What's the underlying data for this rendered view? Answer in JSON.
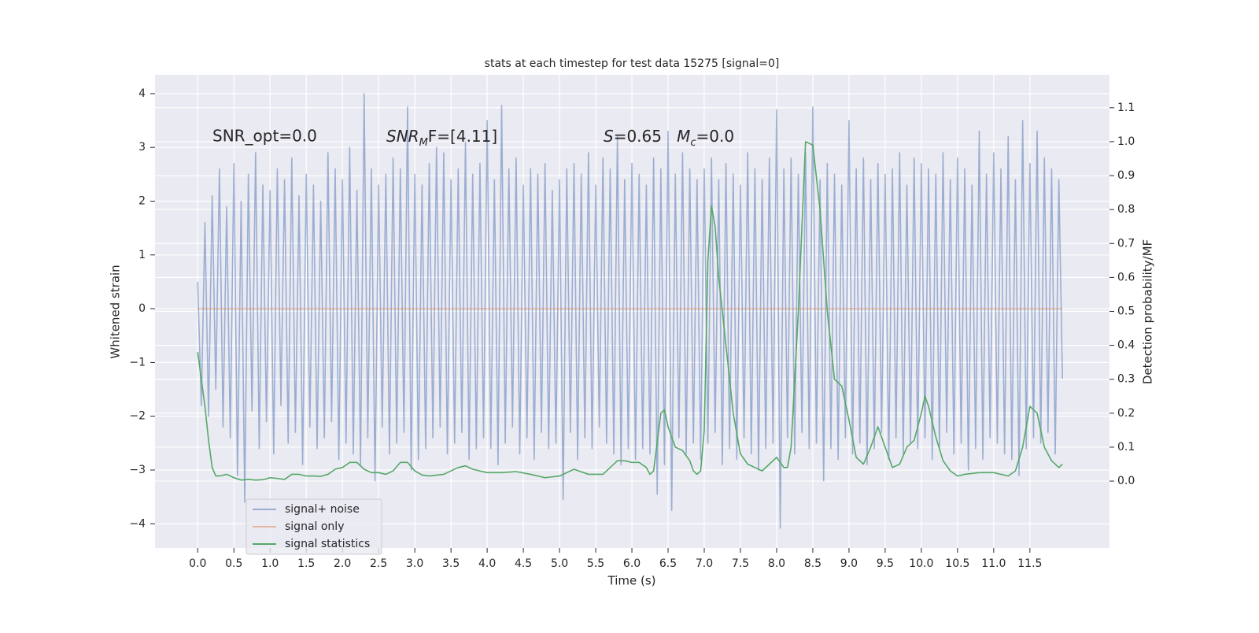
{
  "chart_data": {
    "type": "line",
    "title": "stats at each timestep for test data 15275 [signal=0]",
    "x_label": "Time (s)",
    "y_label": "Whitened strain",
    "y2_label": "Detection probability/MF",
    "annotations": [
      "SNR_opt=0.0",
      [
        "SNR",
        "M",
        "F=[4.11]"
      ],
      [
        "S",
        "=0.65   ",
        "M",
        "c",
        "=0.0"
      ]
    ],
    "xlim": [
      -0.59,
      12.6
    ],
    "ylim": [
      -4.45,
      4.35
    ],
    "y2lim": [
      -0.197,
      1.197
    ],
    "xticks": [
      {
        "value": 0,
        "label": "0.0"
      },
      0.5,
      {
        "value": 1,
        "label": "1.0"
      },
      1.5,
      {
        "value": 2,
        "label": "2.0"
      },
      2.5,
      {
        "value": 3,
        "label": "3.0"
      },
      3.5,
      {
        "value": 4,
        "label": "4.0"
      },
      4.5,
      {
        "value": 5,
        "label": "5.0"
      },
      5.5,
      {
        "value": 6,
        "label": "6.0"
      },
      6.5,
      {
        "value": 7,
        "label": "7.0"
      },
      7.5,
      {
        "value": 8,
        "label": "8.0"
      },
      8.5,
      {
        "value": 9,
        "label": "9.0"
      },
      9.5,
      {
        "value": 10,
        "label": "10.0"
      },
      10.5,
      {
        "value": 11,
        "label": "11.0"
      },
      11.5
    ],
    "yticks": [
      {
        "value": -4,
        "label": "−4"
      },
      {
        "value": -3,
        "label": "−3"
      },
      {
        "value": -2,
        "label": "−2"
      },
      {
        "value": -1,
        "label": "−1"
      },
      0,
      1,
      2,
      3,
      4
    ],
    "y2ticks": [
      {
        "value": 0,
        "label": "0.0"
      },
      0.1,
      0.2,
      0.3,
      0.4,
      0.5,
      0.6,
      0.7,
      0.8,
      0.9,
      {
        "value": 1,
        "label": "1.0"
      },
      1.1
    ],
    "grid": true,
    "legend": "lower left",
    "series": [
      {
        "name": "signal+ noise",
        "color": "#4c72b0",
        "alpha": 0.5,
        "x": [
          0,
          0.05,
          0.1,
          0.15,
          0.2,
          0.25,
          0.3,
          0.35,
          0.4,
          0.45,
          0.5,
          0.55,
          0.6,
          0.65,
          0.7,
          0.75,
          0.8,
          0.85,
          0.9,
          0.95,
          1,
          1.05,
          1.1,
          1.15,
          1.2,
          1.25,
          1.3,
          1.35,
          1.4,
          1.45,
          1.5,
          1.55,
          1.6,
          1.65,
          1.7,
          1.75,
          1.8,
          1.85,
          1.9,
          1.95,
          2,
          2.05,
          2.1,
          2.15,
          2.2,
          2.25,
          2.3,
          2.35,
          2.4,
          2.45,
          2.5,
          2.55,
          2.6,
          2.65,
          2.7,
          2.75,
          2.8,
          2.85,
          2.9,
          2.95,
          3,
          3.05,
          3.1,
          3.15,
          3.2,
          3.25,
          3.3,
          3.35,
          3.4,
          3.45,
          3.5,
          3.55,
          3.6,
          3.65,
          3.7,
          3.75,
          3.8,
          3.85,
          3.9,
          3.95,
          4,
          4.05,
          4.1,
          4.15,
          4.2,
          4.25,
          4.3,
          4.35,
          4.4,
          4.45,
          4.5,
          4.55,
          4.6,
          4.65,
          4.7,
          4.75,
          4.8,
          4.85,
          4.9,
          4.95,
          5,
          5.05,
          5.1,
          5.15,
          5.2,
          5.25,
          5.3,
          5.35,
          5.4,
          5.45,
          5.5,
          5.55,
          5.6,
          5.65,
          5.7,
          5.75,
          5.8,
          5.85,
          5.9,
          5.95,
          6,
          6.05,
          6.1,
          6.15,
          6.2,
          6.25,
          6.3,
          6.35,
          6.4,
          6.45,
          6.5,
          6.55,
          6.6,
          6.65,
          6.7,
          6.75,
          6.8,
          6.85,
          6.9,
          6.95,
          7,
          7.05,
          7.1,
          7.15,
          7.2,
          7.25,
          7.3,
          7.35,
          7.4,
          7.45,
          7.5,
          7.55,
          7.6,
          7.65,
          7.7,
          7.75,
          7.8,
          7.85,
          7.9,
          7.95,
          8,
          8.05,
          8.1,
          8.15,
          8.2,
          8.25,
          8.3,
          8.35,
          8.4,
          8.45,
          8.5,
          8.55,
          8.6,
          8.65,
          8.7,
          8.75,
          8.8,
          8.85,
          8.9,
          8.95,
          9,
          9.05,
          9.1,
          9.15,
          9.2,
          9.25,
          9.3,
          9.35,
          9.4,
          9.45,
          9.5,
          9.55,
          9.6,
          9.65,
          9.7,
          9.75,
          9.8,
          9.85,
          9.9,
          9.95,
          10,
          10.05,
          10.1,
          10.15,
          10.2,
          10.25,
          10.3,
          10.35,
          10.4,
          10.45,
          10.5,
          10.55,
          10.6,
          10.65,
          10.7,
          10.75,
          10.8,
          10.85,
          10.9,
          10.95,
          11,
          11.05,
          11.1,
          11.15,
          11.2,
          11.25,
          11.3,
          11.35,
          11.4,
          11.45,
          11.5,
          11.55,
          11.6,
          11.65,
          11.7,
          11.75,
          11.8,
          11.85,
          11.9,
          11.95
        ],
        "values": [
          0.5,
          -1.8,
          1.6,
          -2.0,
          2.1,
          -1.5,
          2.6,
          -2.2,
          1.9,
          -2.4,
          2.7,
          -3.1,
          2.0,
          -3.6,
          2.5,
          -1.9,
          2.9,
          -2.6,
          2.3,
          -2.1,
          2.2,
          -2.7,
          2.6,
          -1.8,
          2.4,
          -2.5,
          2.8,
          -2.3,
          2.1,
          -2.9,
          2.5,
          -2.2,
          2.3,
          -2.6,
          2.0,
          -2.4,
          2.9,
          -2.1,
          2.6,
          -2.8,
          2.4,
          -2.5,
          3.0,
          -2.7,
          2.2,
          -2.9,
          4.0,
          -2.4,
          2.6,
          -3.2,
          2.3,
          -2.2,
          2.5,
          -2.7,
          2.8,
          -2.5,
          2.6,
          -2.3,
          3.75,
          -3.0,
          2.5,
          -2.8,
          2.3,
          -2.6,
          2.7,
          -2.4,
          3.0,
          -2.2,
          2.9,
          -2.7,
          2.4,
          -2.5,
          2.6,
          -2.3,
          3.1,
          -2.8,
          2.5,
          -2.6,
          2.7,
          -2.4,
          3.5,
          -2.6,
          2.4,
          -2.9,
          3.78,
          -2.5,
          2.6,
          -2.2,
          2.8,
          -2.7,
          2.3,
          -2.4,
          2.6,
          -2.8,
          2.5,
          -2.3,
          2.7,
          -2.6,
          2.2,
          -2.5,
          2.4,
          -3.55,
          2.6,
          -2.3,
          2.7,
          -2.8,
          2.5,
          -2.4,
          2.9,
          -2.6,
          2.3,
          -2.2,
          2.8,
          -2.5,
          2.6,
          -2.7,
          3.2,
          -2.9,
          2.4,
          -2.6,
          2.7,
          -2.8,
          2.5,
          -2.6,
          2.3,
          -2.7,
          2.8,
          -3.45,
          2.6,
          -2.9,
          3.3,
          -3.75,
          2.5,
          -2.4,
          2.9,
          -2.7,
          2.6,
          -2.5,
          2.4,
          -2.8,
          2.6,
          -2.5,
          2.8,
          -2.3,
          2.4,
          -2.9,
          2.7,
          -2.6,
          2.5,
          -2.8,
          2.3,
          -2.4,
          2.9,
          -2.7,
          2.6,
          -3.0,
          2.4,
          -2.6,
          2.8,
          -2.5,
          3.7,
          -4.08,
          2.6,
          -2.4,
          2.8,
          -2.7,
          2.5,
          -2.3,
          2.9,
          -2.6,
          3.75,
          -2.5,
          2.4,
          -3.2,
          2.7,
          -2.6,
          2.5,
          -2.8,
          2.3,
          -2.4,
          3.5,
          -2.7,
          2.6,
          -2.5,
          2.8,
          -2.9,
          2.4,
          -2.6,
          2.7,
          -2.3,
          2.5,
          -2.8,
          2.6,
          -2.4,
          2.9,
          -2.7,
          2.3,
          -2.5,
          2.8,
          -2.6,
          2.7,
          -2.4,
          2.6,
          -2.8,
          2.5,
          -2.6,
          2.9,
          -2.3,
          2.4,
          -2.7,
          2.8,
          -2.5,
          2.6,
          -3.0,
          2.3,
          -2.6,
          3.3,
          -2.8,
          2.5,
          -2.4,
          2.9,
          -2.5,
          2.6,
          -2.7,
          3.2,
          -2.8,
          2.4,
          -3.1,
          3.5,
          -2.6,
          2.7,
          -2.4,
          3.3,
          -2.5,
          2.8,
          -2.3,
          2.6,
          -2.7,
          2.4,
          -1.3
        ]
      },
      {
        "name": "signal only",
        "color": "#dd8452",
        "alpha": 0.5,
        "x": [
          0,
          11.95
        ],
        "values": [
          0,
          0
        ]
      },
      {
        "name": "signal statistics",
        "color": "#55a868",
        "axis": "y2",
        "x": [
          0,
          0.1,
          0.15,
          0.2,
          0.25,
          0.3,
          0.4,
          0.5,
          0.6,
          0.7,
          0.8,
          0.9,
          1.0,
          1.1,
          1.2,
          1.3,
          1.4,
          1.5,
          1.6,
          1.7,
          1.8,
          1.9,
          2.0,
          2.1,
          2.2,
          2.3,
          2.4,
          2.5,
          2.6,
          2.7,
          2.8,
          2.9,
          3.0,
          3.1,
          3.2,
          3.4,
          3.6,
          3.7,
          3.8,
          4.0,
          4.2,
          4.4,
          4.6,
          4.8,
          5.0,
          5.2,
          5.4,
          5.6,
          5.7,
          5.8,
          5.9,
          6.0,
          6.1,
          6.2,
          6.25,
          6.3,
          6.4,
          6.45,
          6.5,
          6.6,
          6.7,
          6.8,
          6.85,
          6.9,
          6.95,
          7.0,
          7.05,
          7.1,
          7.15,
          7.2,
          7.3,
          7.4,
          7.5,
          7.6,
          7.7,
          7.8,
          7.9,
          8.0,
          8.1,
          8.15,
          8.2,
          8.3,
          8.4,
          8.5,
          8.6,
          8.7,
          8.8,
          8.9,
          9.0,
          9.1,
          9.2,
          9.3,
          9.4,
          9.5,
          9.6,
          9.7,
          9.8,
          9.9,
          10.0,
          10.05,
          10.1,
          10.2,
          10.3,
          10.4,
          10.5,
          10.6,
          10.8,
          11.0,
          11.1,
          11.2,
          11.3,
          11.4,
          11.5,
          11.6,
          11.7,
          11.8,
          11.9,
          11.95
        ],
        "values": [
          0.38,
          0.22,
          0.12,
          0.04,
          0.015,
          0.015,
          0.02,
          0.01,
          0.003,
          0.005,
          0.003,
          0.004,
          0.01,
          0.008,
          0.005,
          0.02,
          0.02,
          0.015,
          0.015,
          0.014,
          0.02,
          0.035,
          0.04,
          0.055,
          0.055,
          0.035,
          0.025,
          0.025,
          0.02,
          0.03,
          0.055,
          0.055,
          0.03,
          0.018,
          0.015,
          0.02,
          0.04,
          0.045,
          0.035,
          0.025,
          0.025,
          0.028,
          0.02,
          0.01,
          0.015,
          0.035,
          0.02,
          0.02,
          0.04,
          0.06,
          0.06,
          0.055,
          0.055,
          0.04,
          0.02,
          0.03,
          0.2,
          0.21,
          0.16,
          0.1,
          0.09,
          0.06,
          0.03,
          0.02,
          0.03,
          0.15,
          0.65,
          0.81,
          0.75,
          0.6,
          0.4,
          0.2,
          0.08,
          0.05,
          0.04,
          0.03,
          0.05,
          0.07,
          0.04,
          0.04,
          0.1,
          0.5,
          1.0,
          0.99,
          0.8,
          0.5,
          0.3,
          0.28,
          0.18,
          0.07,
          0.05,
          0.1,
          0.16,
          0.1,
          0.04,
          0.05,
          0.1,
          0.12,
          0.2,
          0.25,
          0.22,
          0.13,
          0.06,
          0.03,
          0.015,
          0.02,
          0.025,
          0.025,
          0.02,
          0.015,
          0.03,
          0.1,
          0.22,
          0.2,
          0.1,
          0.06,
          0.04,
          0.05
        ]
      }
    ]
  }
}
